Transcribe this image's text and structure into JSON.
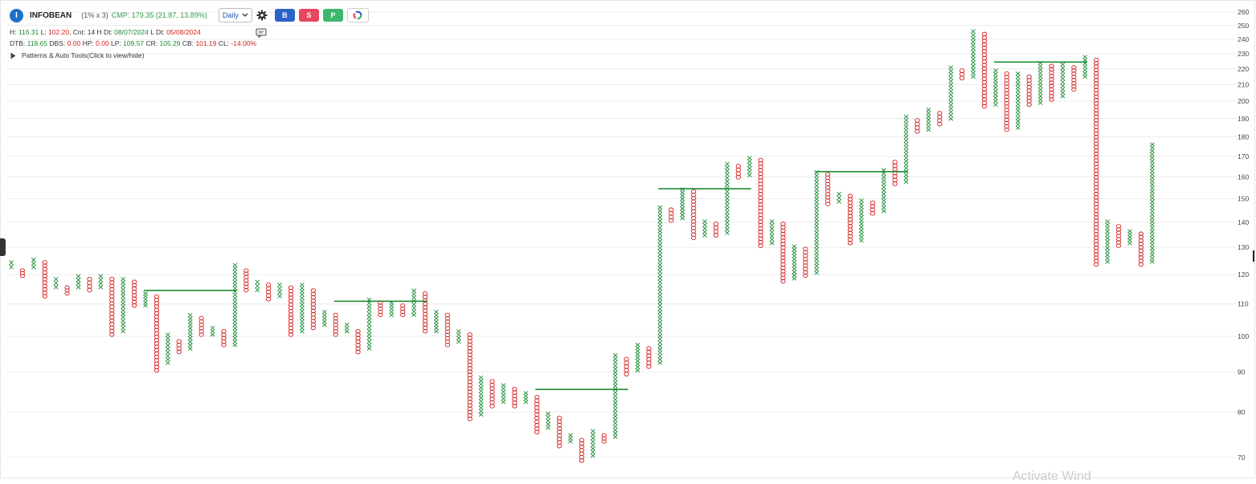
{
  "header": {
    "logo_letter": "I",
    "symbol": "INFOBEAN",
    "box_setting": "(1% x 3)",
    "cmp": "CMP: 179.35 (21.87, 13.89%)",
    "timeframe": "Daily",
    "buttons": {
      "buy": "B",
      "sell": "S",
      "p": "P"
    },
    "accent_colors": {
      "buy": "#2d62c8",
      "sell": "#e64660",
      "p": "#3fb56e"
    }
  },
  "stats_row1": {
    "h_label": "H: ",
    "h_value": "116.31",
    "l_label": " L: ",
    "l_value": "102.20",
    "cnt_label": ", Cnt: 14 H Dt: ",
    "h_dt": "08/07/2024",
    "l_dt_label": " L Dt: ",
    "l_dt": "05/08/2024"
  },
  "stats_row2": {
    "dtb_label": "DTB: ",
    "dtb": "118.65",
    "dbs_label": " DBS: ",
    "dbs": "0.00",
    "hp_label": " HP: ",
    "hp": "0.00",
    "lp_label": " LP: ",
    "lp": "109.57",
    "cr_label": " CR: ",
    "cr": "105.29",
    "cb_label": " CB: ",
    "cb": "101.19",
    "cl_label": " CL: ",
    "cl": "-14.00%"
  },
  "patterns_toggle": "Patterns & Auto Tools(Click to view/hide)",
  "watermark": "Activate Wind",
  "chart_data": {
    "type": "point-and-figure",
    "y_scale": "log",
    "ylim": [
      68,
      262
    ],
    "y_ticks": [
      70,
      80,
      90,
      100,
      110,
      120,
      130,
      140,
      150,
      160,
      170,
      180,
      190,
      200,
      210,
      220,
      230,
      240,
      250,
      260
    ],
    "x_colors": "#1e8c35",
    "o_colors": "#d42020",
    "trendline_color": "#1e8c35",
    "columns": [
      {
        "type": "X",
        "low": 122,
        "high": 125
      },
      {
        "type": "O",
        "low": 119,
        "high": 122
      },
      {
        "type": "X",
        "low": 122,
        "high": 126
      },
      {
        "type": "O",
        "low": 112,
        "high": 125
      },
      {
        "type": "X",
        "low": 115,
        "high": 119
      },
      {
        "type": "O",
        "low": 113,
        "high": 116
      },
      {
        "type": "X",
        "low": 115,
        "high": 120
      },
      {
        "type": "O",
        "low": 114,
        "high": 119
      },
      {
        "type": "X",
        "low": 115,
        "high": 120
      },
      {
        "type": "O",
        "low": 100,
        "high": 119
      },
      {
        "type": "X",
        "low": 101,
        "high": 119
      },
      {
        "type": "O",
        "low": 109,
        "high": 118
      },
      {
        "type": "X",
        "low": 109,
        "high": 114
      },
      {
        "type": "O",
        "low": 90,
        "high": 113
      },
      {
        "type": "X",
        "low": 92,
        "high": 101
      },
      {
        "type": "O",
        "low": 95,
        "high": 99
      },
      {
        "type": "X",
        "low": 96,
        "high": 107
      },
      {
        "type": "O",
        "low": 100,
        "high": 106
      },
      {
        "type": "X",
        "low": 100,
        "high": 103
      },
      {
        "type": "O",
        "low": 97,
        "high": 102
      },
      {
        "type": "X",
        "low": 97,
        "high": 124
      },
      {
        "type": "O",
        "low": 114,
        "high": 122
      },
      {
        "type": "X",
        "low": 114,
        "high": 118
      },
      {
        "type": "O",
        "low": 111,
        "high": 117
      },
      {
        "type": "X",
        "low": 112,
        "high": 117
      },
      {
        "type": "O",
        "low": 100,
        "high": 116
      },
      {
        "type": "X",
        "low": 101,
        "high": 117
      },
      {
        "type": "O",
        "low": 102,
        "high": 115
      },
      {
        "type": "X",
        "low": 103,
        "high": 108
      },
      {
        "type": "O",
        "low": 100,
        "high": 107
      },
      {
        "type": "X",
        "low": 101,
        "high": 104
      },
      {
        "type": "O",
        "low": 95,
        "high": 102
      },
      {
        "type": "X",
        "low": 96,
        "high": 112
      },
      {
        "type": "O",
        "low": 106,
        "high": 111
      },
      {
        "type": "X",
        "low": 106,
        "high": 111
      },
      {
        "type": "O",
        "low": 106,
        "high": 110
      },
      {
        "type": "X",
        "low": 106,
        "high": 115
      },
      {
        "type": "O",
        "low": 101,
        "high": 114
      },
      {
        "type": "X",
        "low": 101,
        "high": 108
      },
      {
        "type": "O",
        "low": 97,
        "high": 107
      },
      {
        "type": "X",
        "low": 98,
        "high": 102
      },
      {
        "type": "O",
        "low": 78,
        "high": 101
      },
      {
        "type": "X",
        "low": 79,
        "high": 89
      },
      {
        "type": "O",
        "low": 81,
        "high": 88
      },
      {
        "type": "X",
        "low": 82,
        "high": 87
      },
      {
        "type": "O",
        "low": 81,
        "high": 86
      },
      {
        "type": "X",
        "low": 82,
        "high": 85
      },
      {
        "type": "O",
        "low": 75,
        "high": 84
      },
      {
        "type": "X",
        "low": 76,
        "high": 80
      },
      {
        "type": "O",
        "low": 72,
        "high": 79
      },
      {
        "type": "X",
        "low": 73,
        "high": 75
      },
      {
        "type": "O",
        "low": 69,
        "high": 74
      },
      {
        "type": "X",
        "low": 70,
        "high": 76
      },
      {
        "type": "O",
        "low": 73,
        "high": 75
      },
      {
        "type": "X",
        "low": 74,
        "high": 95
      },
      {
        "type": "O",
        "low": 89,
        "high": 94
      },
      {
        "type": "X",
        "low": 90,
        "high": 98
      },
      {
        "type": "O",
        "low": 91,
        "high": 97
      },
      {
        "type": "X",
        "low": 92,
        "high": 147
      },
      {
        "type": "O",
        "low": 140,
        "high": 146
      },
      {
        "type": "X",
        "low": 141,
        "high": 155
      },
      {
        "type": "O",
        "low": 133,
        "high": 154
      },
      {
        "type": "X",
        "low": 134,
        "high": 141
      },
      {
        "type": "O",
        "low": 134,
        "high": 140
      },
      {
        "type": "X",
        "low": 135,
        "high": 167
      },
      {
        "type": "O",
        "low": 159,
        "high": 166
      },
      {
        "type": "X",
        "low": 160,
        "high": 170
      },
      {
        "type": "O",
        "low": 130,
        "high": 169
      },
      {
        "type": "X",
        "low": 131,
        "high": 141
      },
      {
        "type": "O",
        "low": 117,
        "high": 140
      },
      {
        "type": "X",
        "low": 118,
        "high": 131
      },
      {
        "type": "O",
        "low": 119,
        "high": 130
      },
      {
        "type": "X",
        "low": 120,
        "high": 163
      },
      {
        "type": "O",
        "low": 147,
        "high": 162
      },
      {
        "type": "X",
        "low": 148,
        "high": 153
      },
      {
        "type": "O",
        "low": 131,
        "high": 152
      },
      {
        "type": "X",
        "low": 132,
        "high": 150
      },
      {
        "type": "O",
        "low": 143,
        "high": 149
      },
      {
        "type": "X",
        "low": 144,
        "high": 164
      },
      {
        "type": "O",
        "low": 156,
        "high": 168
      },
      {
        "type": "X",
        "low": 157,
        "high": 192
      },
      {
        "type": "O",
        "low": 182,
        "high": 190
      },
      {
        "type": "X",
        "low": 183,
        "high": 196
      },
      {
        "type": "O",
        "low": 186,
        "high": 194
      },
      {
        "type": "X",
        "low": 189,
        "high": 222
      },
      {
        "type": "O",
        "low": 213,
        "high": 220
      },
      {
        "type": "X",
        "low": 214,
        "high": 247
      },
      {
        "type": "O",
        "low": 196,
        "high": 245
      },
      {
        "type": "X",
        "low": 197,
        "high": 220
      },
      {
        "type": "O",
        "low": 183,
        "high": 218
      },
      {
        "type": "X",
        "low": 184,
        "high": 218
      },
      {
        "type": "O",
        "low": 197,
        "high": 216
      },
      {
        "type": "X",
        "low": 198,
        "high": 225
      },
      {
        "type": "O",
        "low": 200,
        "high": 223
      },
      {
        "type": "X",
        "low": 202,
        "high": 224
      },
      {
        "type": "O",
        "low": 206,
        "high": 222
      },
      {
        "type": "X",
        "low": 214,
        "high": 229
      },
      {
        "type": "O",
        "low": 123,
        "high": 227
      },
      {
        "type": "X",
        "low": 124,
        "high": 141
      },
      {
        "type": "O",
        "low": 130,
        "high": 139
      },
      {
        "type": "X",
        "low": 131,
        "high": 137
      },
      {
        "type": "O",
        "low": 123,
        "high": 136
      },
      {
        "type": "X",
        "low": 124,
        "high": 177
      }
    ],
    "trendlines": [
      {
        "from_col": 12,
        "to_col": 20,
        "value": 114.5
      },
      {
        "from_col": 29,
        "to_col": 37,
        "value": 110.9
      },
      {
        "from_col": 47,
        "to_col": 55,
        "value": 85.5
      },
      {
        "from_col": 58,
        "to_col": 66,
        "value": 154.5
      },
      {
        "from_col": 72,
        "to_col": 80,
        "value": 162.5
      },
      {
        "from_col": 88,
        "to_col": 96,
        "value": 224.5
      }
    ]
  }
}
